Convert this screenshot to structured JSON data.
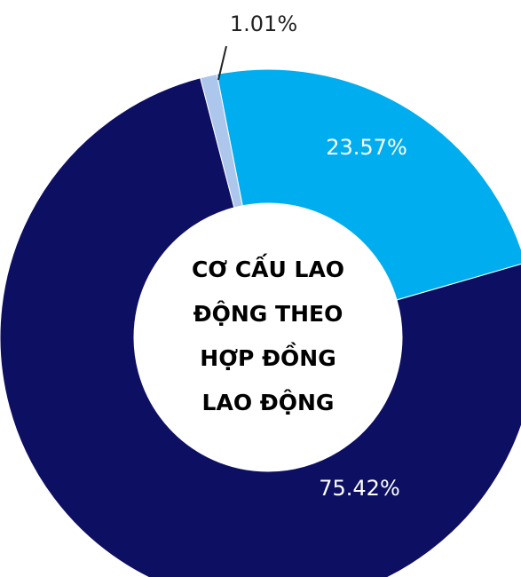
{
  "chart_data": {
    "type": "pie",
    "title": [
      "CƠ CẤU LAO",
      "ĐỘNG THEO",
      "HỢP ĐỒNG",
      "LAO ĐỘNG"
    ],
    "values": [
      23.57,
      75.42,
      1.01
    ],
    "value_labels": [
      "23.57%",
      "75.42%",
      "1.01%"
    ],
    "colors": [
      "#00aeef",
      "#0d0f62",
      "#adc6ec"
    ]
  }
}
